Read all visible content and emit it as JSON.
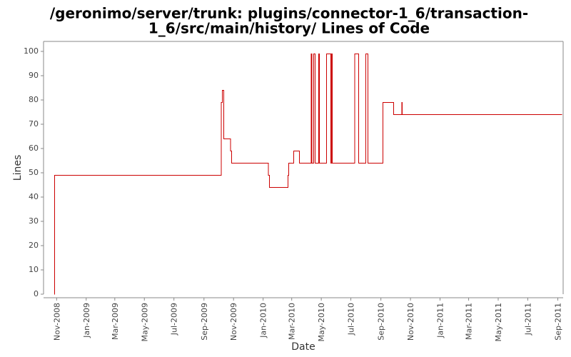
{
  "chart_data": {
    "type": "line",
    "title": "/geronimo/server/trunk: plugins/connector-1_6/transaction-1_6/src/main/history/ Lines of Code",
    "title_lines": [
      "/geronimo/server/trunk: plugins/connector-1_6/transaction-",
      "1_6/src/main/history/ Lines of Code"
    ],
    "xlabel": "Date",
    "ylabel": "Lines",
    "xlim": [
      "2008-10-05",
      "2011-09-12"
    ],
    "ylim": [
      0,
      100
    ],
    "y_ticks": [
      0,
      10,
      20,
      30,
      40,
      50,
      60,
      70,
      80,
      90,
      100
    ],
    "x_ticks": [
      {
        "date": "2008-11-01",
        "label": "Nov-2008"
      },
      {
        "date": "2009-01-01",
        "label": "Jan-2009"
      },
      {
        "date": "2009-03-01",
        "label": "Mar-2009"
      },
      {
        "date": "2009-05-01",
        "label": "May-2009"
      },
      {
        "date": "2009-07-01",
        "label": "Jul-2009"
      },
      {
        "date": "2009-09-01",
        "label": "Sep-2009"
      },
      {
        "date": "2009-11-01",
        "label": "Nov-2009"
      },
      {
        "date": "2010-01-01",
        "label": "Jan-2010"
      },
      {
        "date": "2010-03-01",
        "label": "Mar-2010"
      },
      {
        "date": "2010-05-01",
        "label": "May-2010"
      },
      {
        "date": "2010-07-01",
        "label": "Jul-2010"
      },
      {
        "date": "2010-09-01",
        "label": "Sep-2010"
      },
      {
        "date": "2010-11-01",
        "label": "Nov-2010"
      },
      {
        "date": "2011-01-01",
        "label": "Jan-2011"
      },
      {
        "date": "2011-03-01",
        "label": "Mar-2011"
      },
      {
        "date": "2011-05-01",
        "label": "May-2011"
      },
      {
        "date": "2011-07-01",
        "label": "Jul-2011"
      },
      {
        "date": "2011-09-01",
        "label": "Sep-2011"
      }
    ],
    "step": true,
    "grid": false,
    "series": [
      {
        "color": "#cc0000",
        "points": [
          {
            "x": "2008-10-27",
            "y": 0
          },
          {
            "x": "2008-10-28",
            "y": 49
          },
          {
            "x": "2009-10-07",
            "y": 79
          },
          {
            "x": "2009-10-09",
            "y": 84
          },
          {
            "x": "2009-10-12",
            "y": 64
          },
          {
            "x": "2009-10-26",
            "y": 59
          },
          {
            "x": "2009-10-28",
            "y": 54
          },
          {
            "x": "2010-01-12",
            "y": 49
          },
          {
            "x": "2010-01-14",
            "y": 44
          },
          {
            "x": "2010-02-21",
            "y": 49
          },
          {
            "x": "2010-02-23",
            "y": 54
          },
          {
            "x": "2010-03-05",
            "y": 59
          },
          {
            "x": "2010-03-17",
            "y": 54
          },
          {
            "x": "2010-04-10",
            "y": 99
          },
          {
            "x": "2010-04-12",
            "y": 54
          },
          {
            "x": "2010-04-15",
            "y": 99
          },
          {
            "x": "2010-04-18",
            "y": 54
          },
          {
            "x": "2010-04-26",
            "y": 99
          },
          {
            "x": "2010-04-27",
            "y": 54
          },
          {
            "x": "2010-05-12",
            "y": 99
          },
          {
            "x": "2010-05-21",
            "y": 54
          },
          {
            "x": "2010-05-22",
            "y": 99
          },
          {
            "x": "2010-05-24",
            "y": 54
          },
          {
            "x": "2010-07-09",
            "y": 99
          },
          {
            "x": "2010-07-17",
            "y": 54
          },
          {
            "x": "2010-08-01",
            "y": 99
          },
          {
            "x": "2010-08-05",
            "y": 54
          },
          {
            "x": "2010-09-05",
            "y": 79
          },
          {
            "x": "2010-09-27",
            "y": 74
          },
          {
            "x": "2010-10-14",
            "y": 79
          },
          {
            "x": "2010-10-15",
            "y": 74
          },
          {
            "x": "2011-09-10",
            "y": 74
          }
        ]
      }
    ]
  }
}
